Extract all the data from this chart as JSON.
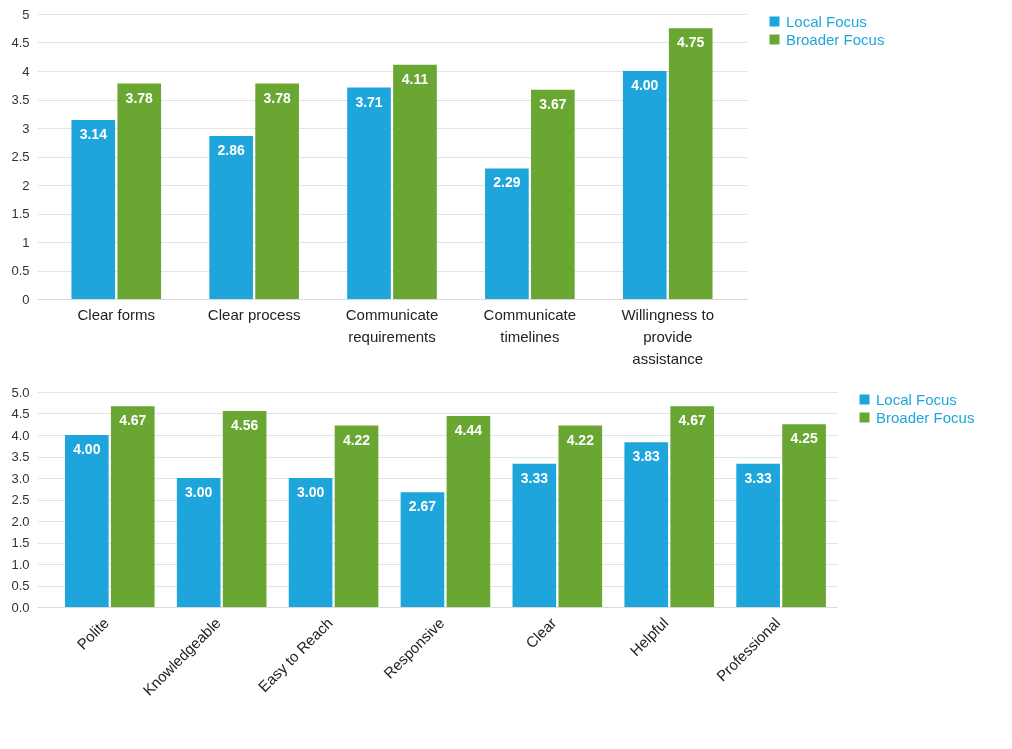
{
  "chart_data": [
    {
      "type": "bar",
      "categories": [
        "Clear forms",
        "Clear process",
        "Communicate requirements",
        "Communicate timelines",
        "Willingness to provide assistance"
      ],
      "series": [
        {
          "name": "Local Focus",
          "color": "#1ea6dc",
          "values": [
            3.14,
            2.86,
            3.71,
            2.29,
            4.0
          ],
          "value_labels": [
            "3.14",
            "2.86",
            "3.71",
            "2.29",
            "4.00"
          ]
        },
        {
          "name": "Broader Focus",
          "color": "#6aa632",
          "values": [
            3.78,
            3.78,
            4.11,
            3.67,
            4.75
          ],
          "value_labels": [
            "3.78",
            "3.78",
            "4.11",
            "3.67",
            "4.75"
          ]
        }
      ],
      "ylim": [
        0,
        5
      ],
      "yticks": [
        0,
        0.5,
        1,
        1.5,
        2,
        2.5,
        3,
        3.5,
        4,
        4.5,
        5
      ],
      "grid": "y",
      "legend": "right"
    },
    {
      "type": "bar",
      "categories": [
        "Polite",
        "Knowledgeable",
        "Easy to Reach",
        "Responsive",
        "Clear",
        "Helpful",
        "Professional"
      ],
      "series": [
        {
          "name": "Local Focus",
          "color": "#1ea6dc",
          "values": [
            4.0,
            3.0,
            3.0,
            2.67,
            3.33,
            3.83,
            3.33
          ],
          "value_labels": [
            "4.00",
            "3.00",
            "3.00",
            "2.67",
            "3.33",
            "3.83",
            "3.33"
          ]
        },
        {
          "name": "Broader Focus",
          "color": "#6aa632",
          "values": [
            4.67,
            4.56,
            4.22,
            4.44,
            4.22,
            4.67,
            4.25
          ],
          "value_labels": [
            "4.67",
            "4.56",
            "4.22",
            "4.44",
            "4.22",
            "4.67",
            "4.25"
          ]
        }
      ],
      "ylim": [
        0,
        5
      ],
      "yticks": [
        {
          "value": 0,
          "label": "0.0"
        },
        {
          "value": 0.5,
          "label": "0.5"
        },
        {
          "value": 1,
          "label": "1.0"
        },
        {
          "value": 1.5,
          "label": "1.5"
        },
        {
          "value": 2,
          "label": "2.0"
        },
        {
          "value": 2.5,
          "label": "2.5"
        },
        {
          "value": 3,
          "label": "3.0"
        },
        {
          "value": 3.5,
          "label": "3.5"
        },
        {
          "value": 4,
          "label": "4.0"
        },
        {
          "value": 4.5,
          "label": "4.5"
        },
        {
          "value": 5,
          "label": "5.0"
        }
      ],
      "grid": "y",
      "legend": "right"
    }
  ]
}
